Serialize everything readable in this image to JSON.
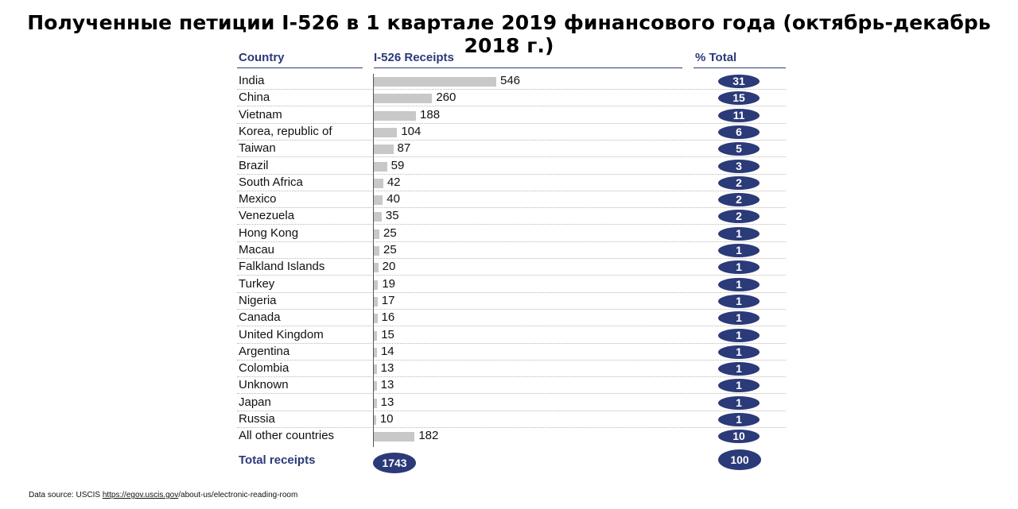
{
  "title": "Полученные петиции I-526 в 1 квартале 2019 финансового года (октябрь-декабрь 2018 г.)",
  "headers": {
    "country": "Country",
    "receipts": "I-526 Receipts",
    "pct": "% Total"
  },
  "total": {
    "label": "Total receipts",
    "value": "1743",
    "pct": "100"
  },
  "source": {
    "prefix": "Data source: USCIS ",
    "link": "https://egov.uscis.gov",
    "suffix": "/about-us/electronic-reading-room"
  },
  "colors": {
    "accent": "#2b3a78",
    "bar": "#c8c8c8"
  },
  "chart_data": {
    "type": "bar",
    "orientation": "horizontal",
    "title": "Полученные петиции I-526 в 1 квартале 2019 финансового года (октябрь-декабрь 2018 г.)",
    "categories": [
      "India",
      "China",
      "Vietnam",
      "Korea, republic of",
      "Taiwan",
      "Brazil",
      "South Africa",
      "Mexico",
      "Venezuela",
      "Hong Kong",
      "Macau",
      "Falkland Islands",
      "Turkey",
      "Nigeria",
      "Canada",
      "United Kingdom",
      "Argentina",
      "Colombia",
      "Unknown",
      "Japan",
      "Russia",
      "All other countries"
    ],
    "values": [
      546,
      260,
      188,
      104,
      87,
      59,
      42,
      40,
      35,
      25,
      25,
      20,
      19,
      17,
      16,
      15,
      14,
      13,
      13,
      13,
      10,
      182
    ],
    "percent_total": [
      31,
      15,
      11,
      6,
      5,
      3,
      2,
      2,
      2,
      1,
      1,
      1,
      1,
      1,
      1,
      1,
      1,
      1,
      1,
      1,
      1,
      10
    ],
    "xlim": [
      0,
      546
    ],
    "grid": false,
    "legend": "none"
  }
}
